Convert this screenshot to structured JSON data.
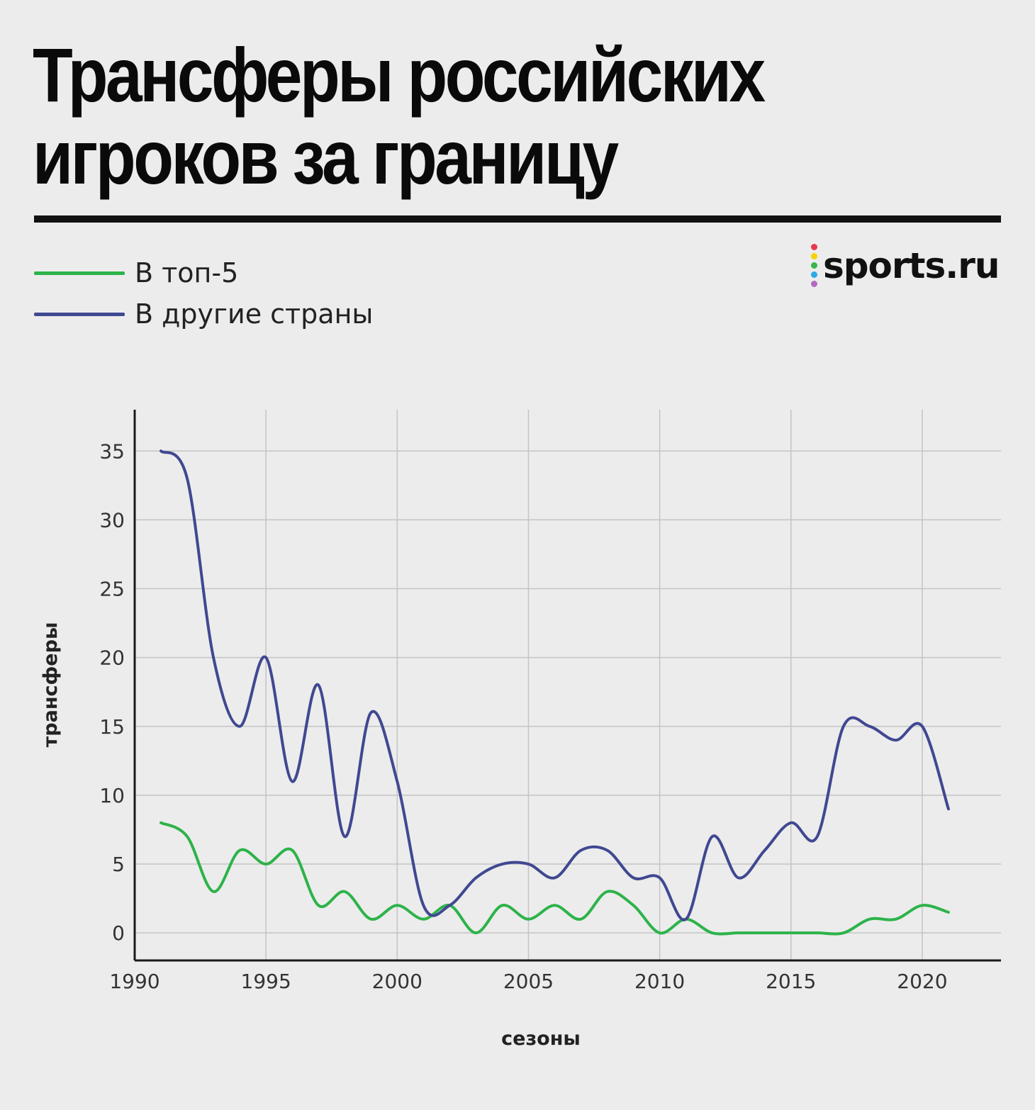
{
  "title": "Трансферы российских игроков за границу",
  "logo": {
    "text": "sports.ru",
    "dot_colors": [
      "#e8384f",
      "#f5d400",
      "#39b54a",
      "#29abe2",
      "#b36ac2"
    ]
  },
  "chart_data": {
    "type": "line",
    "xlabel": "сезоны",
    "ylabel": "трансферы",
    "xlim": [
      1990,
      2023
    ],
    "ylim": [
      -2,
      38
    ],
    "x_ticks": [
      1990,
      1995,
      2000,
      2005,
      2010,
      2015,
      2020
    ],
    "y_ticks": [
      0,
      5,
      10,
      15,
      20,
      25,
      30,
      35
    ],
    "grid": true,
    "legend_position": "top-left",
    "x": [
      1991,
      1992,
      1993,
      1994,
      1995,
      1996,
      1997,
      1998,
      1999,
      2000,
      2001,
      2002,
      2003,
      2004,
      2005,
      2006,
      2007,
      2008,
      2009,
      2010,
      2011,
      2012,
      2013,
      2014,
      2015,
      2016,
      2017,
      2018,
      2019,
      2020,
      2021
    ],
    "series": [
      {
        "name": "В топ-5",
        "color": "#2db34a",
        "values": [
          8,
          7,
          3,
          6,
          5,
          6,
          2,
          3,
          1,
          2,
          1,
          2,
          0,
          2,
          1,
          2,
          1,
          3,
          2,
          0,
          1,
          0,
          0,
          0,
          0,
          0,
          0,
          1,
          1,
          2,
          1.5
        ]
      },
      {
        "name": "В другие страны",
        "color": "#404891",
        "values": [
          35,
          33,
          20,
          15,
          20,
          11,
          18,
          7,
          16,
          11,
          2,
          2,
          4,
          5,
          5,
          4,
          6,
          6,
          4,
          4,
          1,
          7,
          4,
          6,
          8,
          7,
          15,
          15,
          14,
          15,
          9
        ]
      }
    ]
  }
}
